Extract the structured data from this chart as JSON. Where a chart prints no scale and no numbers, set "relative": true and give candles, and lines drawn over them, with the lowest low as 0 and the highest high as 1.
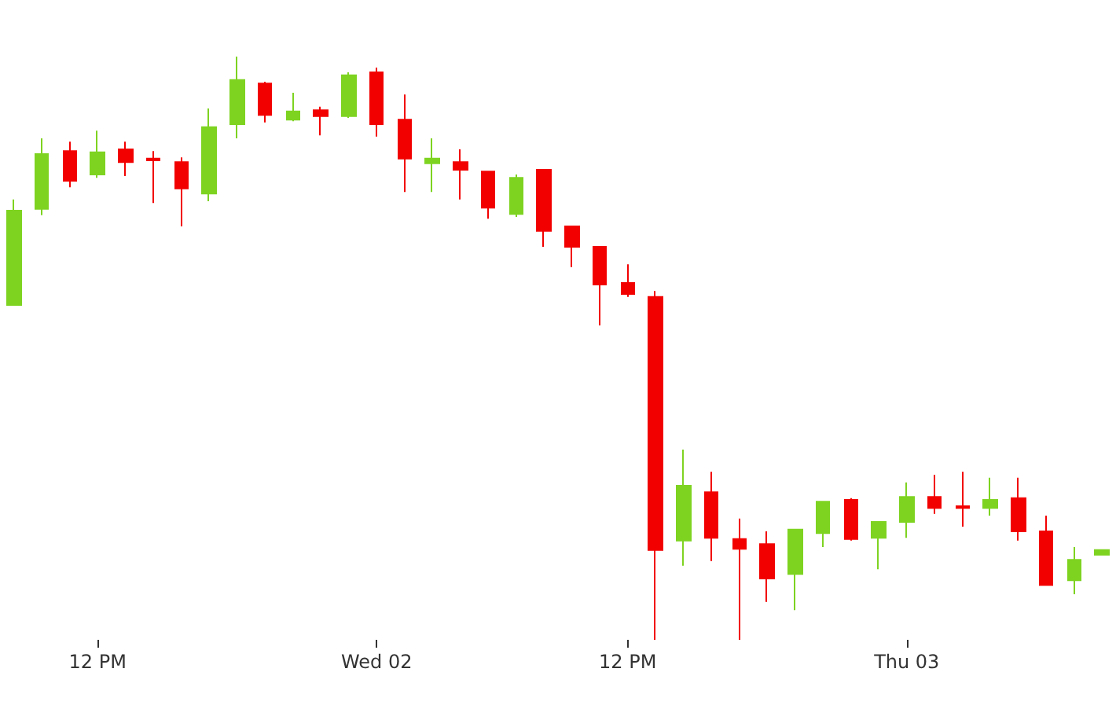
{
  "chart_data": {
    "type": "candlestick",
    "relative": true,
    "categories": [
      null,
      null,
      null,
      "12 PM",
      null,
      null,
      null,
      null,
      null,
      null,
      null,
      null,
      null,
      "Wed 02",
      null,
      null,
      null,
      null,
      null,
      null,
      null,
      null,
      "12 PM",
      null,
      null,
      null,
      null,
      null,
      null,
      null,
      null,
      null,
      "Thu 03",
      null,
      null,
      null,
      null,
      null,
      null,
      null
    ],
    "ohlc": [
      [
        0.574,
        0.755,
        0.574,
        0.736
      ],
      [
        0.739,
        0.86,
        0.728,
        0.833
      ],
      [
        0.838,
        0.854,
        0.776,
        0.787
      ],
      [
        0.798,
        0.873,
        0.792,
        0.836
      ],
      [
        0.841,
        0.854,
        0.795,
        0.819
      ],
      [
        0.825,
        0.838,
        0.749,
        0.822
      ],
      [
        0.819,
        0.827,
        0.709,
        0.774
      ],
      [
        0.765,
        0.911,
        0.752,
        0.879
      ],
      [
        0.884,
        1,
        0.86,
        0.96
      ],
      [
        0.954,
        0.957,
        0.887,
        0.9
      ],
      [
        0.892,
        0.938,
        0.889,
        0.906
      ],
      [
        0.908,
        0.914,
        0.865,
        0.898
      ],
      [
        0.898,
        0.973,
        0.895,
        0.968
      ],
      [
        0.973,
        0.981,
        0.863,
        0.884
      ],
      [
        0.892,
        0.935,
        0.768,
        0.825
      ],
      [
        0.817,
        0.86,
        0.768,
        0.825
      ],
      [
        0.819,
        0.841,
        0.755,
        0.806
      ],
      [
        0.803,
        0.803,
        0.722,
        0.741
      ],
      [
        0.73,
        0.798,
        0.725,
        0.792
      ],
      [
        0.806,
        0.806,
        0.674,
        0.701
      ],
      [
        0.709,
        0.709,
        0.639,
        0.674
      ],
      [
        0.674,
        0.674,
        0.539,
        0.609
      ],
      [
        0.612,
        0.644,
        0.588,
        0.593
      ],
      [
        0.588,
        0.598,
        0,
        0.154
      ],
      [
        0.17,
        0.326,
        0.127,
        0.264
      ],
      [
        0.253,
        0.288,
        0.135,
        0.175
      ],
      [
        0.173,
        0.208,
        0,
        0.156
      ],
      [
        0.164,
        0.186,
        0.065,
        0.105
      ],
      [
        0.113,
        0.189,
        0.051,
        0.189
      ],
      [
        0.183,
        0.237,
        0.159,
        0.237
      ],
      [
        0.24,
        0.243,
        0.17,
        0.173
      ],
      [
        0.175,
        0.202,
        0.121,
        0.202
      ],
      [
        0.202,
        0.27,
        0.175,
        0.245
      ],
      [
        0.245,
        0.283,
        0.216,
        0.226
      ],
      [
        0.229,
        0.288,
        0.194,
        0.226
      ],
      [
        0.226,
        0.278,
        0.213,
        0.24
      ],
      [
        0.243,
        0.278,
        0.17,
        0.186
      ],
      [
        0.186,
        0.213,
        0.094,
        0.094
      ],
      [
        0.102,
        0.159,
        0.078,
        0.137
      ],
      [
        0.146,
        0.154,
        0.146,
        0.154
      ]
    ],
    "colors": [
      "#7ed321",
      "#7ed321",
      "#f20000",
      "#7ed321",
      "#f20000",
      "#f20000",
      "#f20000",
      "#7ed321",
      "#7ed321",
      "#f20000",
      "#7ed321",
      "#f20000",
      "#7ed321",
      "#f20000",
      "#f20000",
      "#7ed321",
      "#f20000",
      "#f20000",
      "#7ed321",
      "#f20000",
      "#f20000",
      "#f20000",
      "#f20000",
      "#f20000",
      "#7ed321",
      "#f20000",
      "#f20000",
      "#f20000",
      "#7ed321",
      "#7ed321",
      "#f20000",
      "#7ed321",
      "#7ed321",
      "#f20000",
      "#f20000",
      "#7ed321",
      "#f20000",
      "#f20000",
      "#7ed321",
      "#7ed321"
    ]
  }
}
